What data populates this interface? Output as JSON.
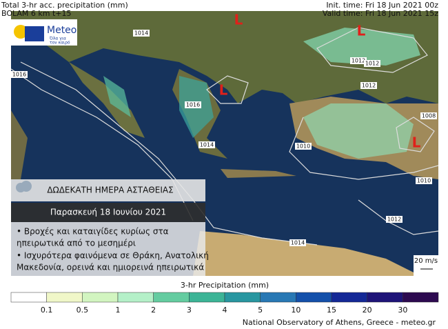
{
  "header": {
    "left": [
      "Total 3-hr acc. precipitation (mm)",
      "BOLAM 6 km t+15"
    ],
    "right": [
      "Init. time: Fri 18 Jun 2021 00z",
      "Valid time: Fri 18 Jun 2021 15z"
    ]
  },
  "logo": {
    "name": "Meteo",
    "tagline": [
      "Όλα για",
      "τον καιρό"
    ]
  },
  "map": {
    "isobars": [
      "1014",
      "1016",
      "1012",
      "1012",
      "1012",
      "1008",
      "1010",
      "1014",
      "1016",
      "1010",
      "1012",
      "1014"
    ],
    "lows": [
      "L",
      "L",
      "L",
      "L"
    ],
    "wind_scale": "20 m/s"
  },
  "info_box": {
    "title": "ΔΩΔΕΚΑΤΗ ΗΜΕΡΑ ΑΣΤΑΘΕΙΑΣ",
    "date": "Παρασκευή 18 Ιουνίου 2021",
    "lines": [
      "• Βροχές και καταιγίδες κυρίως στα",
      "ηπειρωτικά από το μεσημέρι",
      "• Ισχυρότερα φαινόμενα σε Θράκη, Ανατολική",
      "Μακεδονία, ορεινά και ημιορεινά ηπειρωτικά"
    ]
  },
  "colorbar": {
    "title": "3-hr Precipitation (mm)",
    "levels": [
      0.1,
      0.5,
      1,
      2,
      3,
      4,
      5,
      10,
      15,
      20,
      30
    ],
    "colors": [
      "#ffffff",
      "#f0f7c8",
      "#d2f5c0",
      "#b4f0c8",
      "#64cca0",
      "#3cb496",
      "#2896a0",
      "#2878b4",
      "#1450aa",
      "#142896",
      "#1e1478",
      "#2d0a50"
    ]
  },
  "footer": "National Observatory of Athens, Greece - meteo.gr"
}
